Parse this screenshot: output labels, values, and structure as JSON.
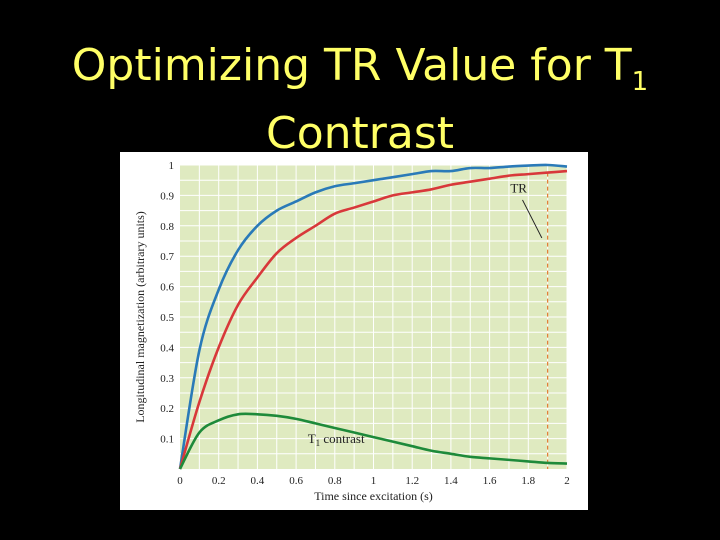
{
  "slide": {
    "title_main": "Optimizing TR Value for T",
    "title_sub": "1",
    "title_line2": "Contrast"
  },
  "chart_data": {
    "type": "line",
    "title": "",
    "xlabel": "Time since excitation (s)",
    "ylabel": "Longitudinal magnetization (arbitrary units)",
    "xlim": [
      0,
      2
    ],
    "ylim": [
      0,
      1
    ],
    "x_ticks": [
      "0",
      "0.2",
      "0.4",
      "0.6",
      "0.8",
      "1",
      "1.2",
      "1.4",
      "1.6",
      "1.8",
      "2"
    ],
    "y_ticks": [
      "0.1",
      "0.2",
      "0.3",
      "0.4",
      "0.5",
      "0.6",
      "0.7",
      "0.8",
      "0.9",
      "1"
    ],
    "grid": true,
    "background_color": "#dfeac0",
    "x": [
      0,
      0.1,
      0.2,
      0.3,
      0.4,
      0.5,
      0.6,
      0.7,
      0.8,
      0.9,
      1.0,
      1.1,
      1.2,
      1.3,
      1.4,
      1.5,
      1.6,
      1.7,
      1.8,
      1.9,
      2.0
    ],
    "series": [
      {
        "color": "#2a7ab8",
        "values": [
          0,
          0.39,
          0.59,
          0.72,
          0.8,
          0.85,
          0.88,
          0.91,
          0.93,
          0.94,
          0.95,
          0.96,
          0.97,
          0.98,
          0.98,
          0.99,
          0.99,
          0.995,
          0.998,
          1.0,
          0.995
        ]
      },
      {
        "color": "#d8383a",
        "values": [
          0,
          0.22,
          0.4,
          0.54,
          0.63,
          0.71,
          0.76,
          0.8,
          0.84,
          0.86,
          0.88,
          0.9,
          0.91,
          0.92,
          0.935,
          0.945,
          0.955,
          0.965,
          0.97,
          0.975,
          0.98
        ]
      },
      {
        "color": "#1e8a3a",
        "values": [
          0,
          0.12,
          0.16,
          0.18,
          0.18,
          0.175,
          0.165,
          0.15,
          0.135,
          0.12,
          0.105,
          0.09,
          0.075,
          0.06,
          0.05,
          0.04,
          0.035,
          0.03,
          0.025,
          0.02,
          0.018
        ]
      }
    ],
    "annotations": {
      "tr_label": "TR",
      "tr_x": 1.9,
      "tr_line_color": "#e07a30",
      "contrast_label_main": "T",
      "contrast_label_sub": "1",
      "contrast_label_rest": " contrast"
    }
  }
}
